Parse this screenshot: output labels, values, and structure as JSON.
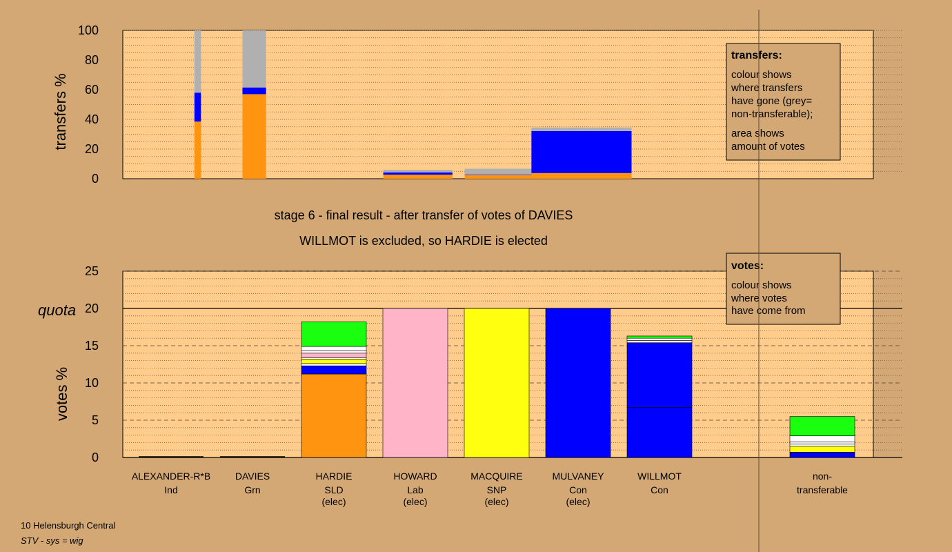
{
  "chart_data": {
    "type": "bar",
    "colors": {
      "page_bg": "#d3a874",
      "plot_bg": "#ffcc8c",
      "SLD": "#ff9410",
      "Con": "#0000ff",
      "Lab": "#ffb4c8",
      "SNP": "#ffff10",
      "Grn": "#1aff10",
      "Ind": "#ffffff",
      "nontransferable": "#b0b0b0"
    },
    "transfers_panel": {
      "ylabel": "transfers %",
      "ylim": [
        0,
        100
      ],
      "yticks": [
        "0",
        "20",
        "40",
        "60",
        "80",
        "100"
      ],
      "ytick_values": [
        0,
        20,
        40,
        60,
        80,
        100
      ],
      "columns": [
        {
          "stage": 2,
          "x0": 0.88,
          "x1": 0.96,
          "segments": [
            {
              "party": "SLD",
              "value": 38.5
            },
            {
              "party": "Con",
              "value": 19.5
            },
            {
              "party": "nontransferable",
              "value": 42
            }
          ]
        },
        {
          "stage": 3,
          "x0": 1.47,
          "x1": 1.76,
          "segments": [
            {
              "party": "SLD",
              "value": 57
            },
            {
              "party": "Con",
              "value": 4.5
            },
            {
              "party": "nontransferable",
              "value": 38.5
            }
          ]
        },
        {
          "stage": 4,
          "x0": 3.2,
          "x1": 4.05,
          "segments": [
            {
              "party": "SLD",
              "value": 2.7
            },
            {
              "party": "Con",
              "value": 1.5
            },
            {
              "party": "nontransferable",
              "value": 1.8
            }
          ]
        },
        {
          "stage": 5,
          "x0": 4.2,
          "x1": 5.05,
          "segments": [
            {
              "party": "SLD",
              "value": 2.5
            },
            {
              "party": "Con",
              "value": 0.3
            },
            {
              "party": "nontransferable",
              "value": 3.9
            }
          ]
        },
        {
          "stage": 6,
          "x0": 5.02,
          "x1": 6.25,
          "segments": [
            {
              "party": "SLD",
              "value": 3.8
            },
            {
              "party": "Con",
              "value": 28.3
            },
            {
              "party": "nontransferable",
              "value": 2.4
            }
          ]
        }
      ]
    },
    "legend_transfers": {
      "title": "transfers:",
      "lines": [
        "colour shows",
        "where transfers",
        "have gone (grey=",
        "non-transferable);"
      ],
      "lines2": [
        "area shows",
        "amount of votes"
      ]
    },
    "stage_title": "stage 6 - final result - after transfer of votes of DAVIES",
    "stage_subtitle": "WILLMOT is excluded, so HARDIE is elected",
    "votes_panel": {
      "ylabel": "votes %",
      "ylim": [
        0,
        25
      ],
      "yticks": [
        "0",
        "5",
        "10",
        "15",
        "20",
        "25"
      ],
      "ytick_values": [
        0,
        5,
        10,
        15,
        20,
        25
      ],
      "quota": 20,
      "quota_label": "quota",
      "bars": [
        {
          "name": "ALEXANDER-R*B",
          "party": "Ind",
          "note": "",
          "segments": []
        },
        {
          "name": "DAVIES",
          "party": "Grn",
          "note": "",
          "segments": []
        },
        {
          "name": "HARDIE",
          "party": "SLD",
          "note": "(elec)",
          "segments": [
            {
              "party": "SLD",
              "value": 11.2
            },
            {
              "party": "Con",
              "value": 1.1
            },
            {
              "party": "Ind",
              "value": 0.3
            },
            {
              "party": "SNP",
              "value": 0.6
            },
            {
              "party": "Ind",
              "value": 0.2
            },
            {
              "party": "Lab",
              "value": 0.6
            },
            {
              "party": "Ind",
              "value": 0.3
            },
            {
              "party": "Ind",
              "value": 0.6
            },
            {
              "party": "Grn",
              "value": 3.3
            }
          ]
        },
        {
          "name": "HOWARD",
          "party": "Lab",
          "note": "(elec)",
          "segments": [
            {
              "party": "Lab",
              "value": 20
            }
          ]
        },
        {
          "name": "MACQUIRE",
          "party": "SNP",
          "note": "(elec)",
          "segments": [
            {
              "party": "SNP",
              "value": 20
            }
          ]
        },
        {
          "name": "MULVANEY",
          "party": "Con",
          "note": "(elec)",
          "segments": [
            {
              "party": "Con",
              "value": 20
            }
          ]
        },
        {
          "name": "WILLMOT",
          "party": "Con",
          "note": "",
          "segments": [
            {
              "party": "Con",
              "value": 6.7
            },
            {
              "party": "Con",
              "value": 8.7
            },
            {
              "party": "Ind",
              "value": 0.3
            },
            {
              "party": "Ind",
              "value": 0.3
            },
            {
              "party": "Grn",
              "value": 0.3
            }
          ]
        },
        {
          "name": "non-",
          "party": "transferable",
          "note": "",
          "segments": [
            {
              "party": "Con",
              "value": 0.7
            },
            {
              "party": "SNP",
              "value": 0.8
            },
            {
              "party": "Ind",
              "value": 0.3
            },
            {
              "party": "Ind",
              "value": 0.3
            },
            {
              "party": "Ind",
              "value": 0.8
            },
            {
              "party": "Grn",
              "value": 2.6
            }
          ]
        }
      ]
    },
    "legend_votes": {
      "title": "votes:",
      "lines": [
        "colour shows",
        "where votes",
        "have come from"
      ]
    },
    "footer": {
      "ward": "10 Helensburgh Central",
      "system": "STV - sys = wig"
    }
  }
}
